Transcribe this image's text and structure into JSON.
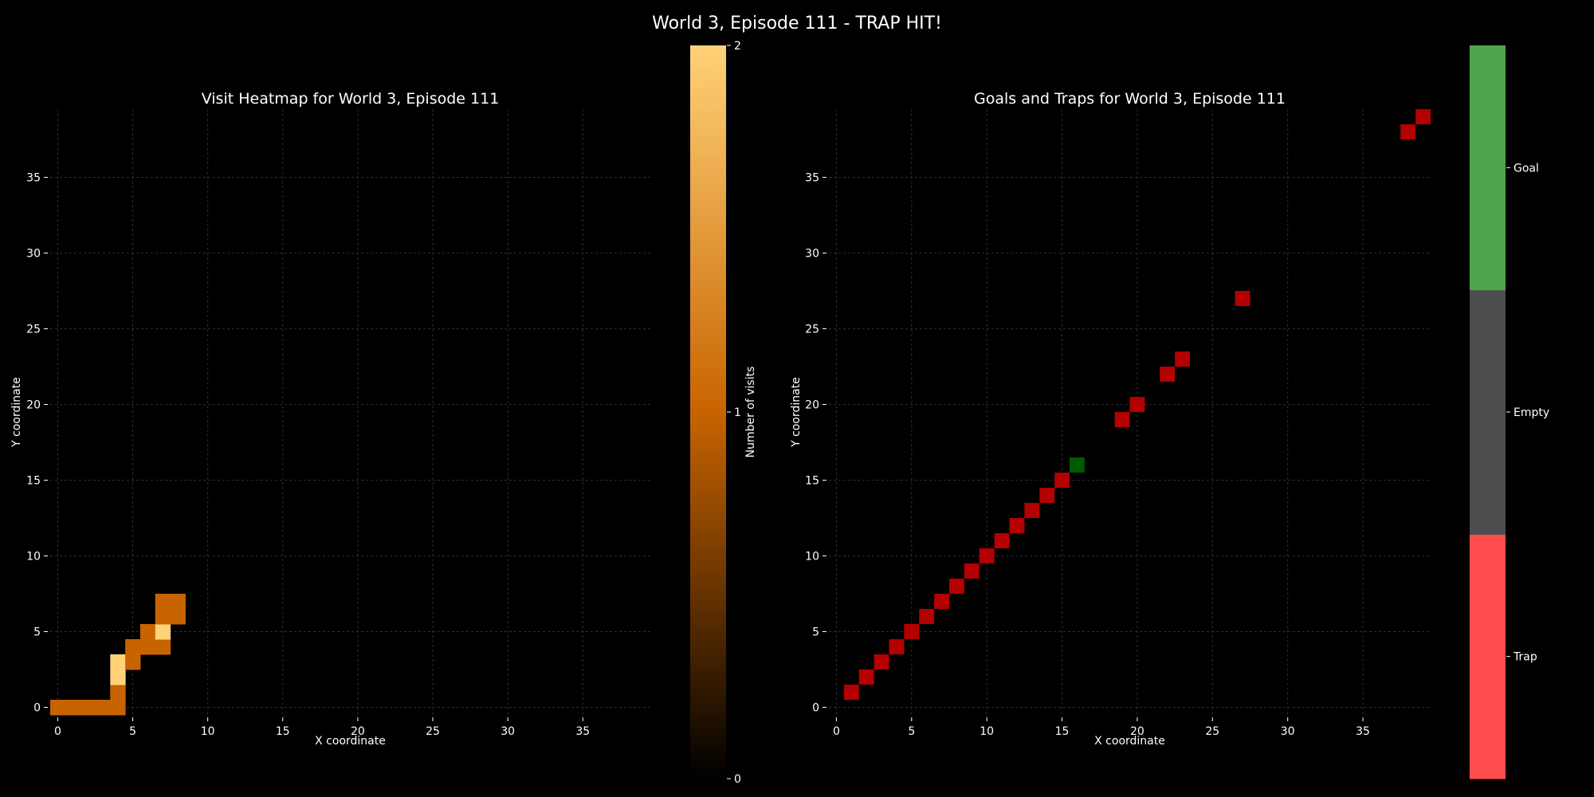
{
  "suptitle": "World 3, Episode 111 - TRAP HIT!",
  "chart_data": [
    {
      "type": "heatmap",
      "title": "Visit Heatmap for World 3, Episode 111",
      "xlabel": "X coordinate",
      "ylabel": "Y coordinate",
      "xlim": [
        -0.5,
        39.5
      ],
      "ylim": [
        -0.5,
        39.5
      ],
      "xticks": [
        0,
        5,
        10,
        15,
        20,
        25,
        30,
        35
      ],
      "yticks": [
        0,
        5,
        10,
        15,
        20,
        25,
        30,
        35
      ],
      "grid": true,
      "colorbar": {
        "label": "Number of visits",
        "range": [
          0,
          2
        ],
        "ticks": [
          0,
          1,
          2
        ],
        "colormap": "copper-to-light-orange",
        "colors": [
          "#000000",
          "#c86400",
          "#ffd278"
        ]
      },
      "cells": [
        {
          "x": 0,
          "y": 0,
          "v": 1
        },
        {
          "x": 1,
          "y": 0,
          "v": 1
        },
        {
          "x": 2,
          "y": 0,
          "v": 1
        },
        {
          "x": 3,
          "y": 0,
          "v": 1
        },
        {
          "x": 4,
          "y": 0,
          "v": 1
        },
        {
          "x": 4,
          "y": 1,
          "v": 1
        },
        {
          "x": 4,
          "y": 2,
          "v": 2
        },
        {
          "x": 4,
          "y": 3,
          "v": 2
        },
        {
          "x": 5,
          "y": 3,
          "v": 1
        },
        {
          "x": 5,
          "y": 4,
          "v": 1
        },
        {
          "x": 6,
          "y": 4,
          "v": 1
        },
        {
          "x": 7,
          "y": 4,
          "v": 1
        },
        {
          "x": 6,
          "y": 5,
          "v": 1
        },
        {
          "x": 7,
          "y": 5,
          "v": 2
        },
        {
          "x": 7,
          "y": 6,
          "v": 1
        },
        {
          "x": 8,
          "y": 6,
          "v": 1
        },
        {
          "x": 7,
          "y": 7,
          "v": 1
        },
        {
          "x": 8,
          "y": 7,
          "v": 1
        }
      ]
    },
    {
      "type": "heatmap",
      "title": "Goals and Traps for World 3, Episode 111",
      "xlabel": "X coordinate",
      "ylabel": "Y coordinate",
      "xlim": [
        -0.5,
        39.5
      ],
      "ylim": [
        -0.5,
        39.5
      ],
      "xticks": [
        0,
        5,
        10,
        15,
        20,
        25,
        30,
        35
      ],
      "yticks": [
        0,
        5,
        10,
        15,
        20,
        25,
        30,
        35
      ],
      "grid": true,
      "colors": {
        "trap": "#b40000",
        "goal": "#005a00"
      },
      "colorbar": {
        "categories": [
          "Trap",
          "Empty",
          "Goal"
        ],
        "colors": [
          "#ff4d4d",
          "#4d4d4d",
          "#4da64d"
        ]
      },
      "traps": [
        [
          1,
          1
        ],
        [
          2,
          2
        ],
        [
          3,
          3
        ],
        [
          4,
          4
        ],
        [
          5,
          5
        ],
        [
          6,
          6
        ],
        [
          7,
          7
        ],
        [
          8,
          8
        ],
        [
          9,
          9
        ],
        [
          10,
          10
        ],
        [
          11,
          11
        ],
        [
          12,
          12
        ],
        [
          13,
          13
        ],
        [
          14,
          14
        ],
        [
          15,
          15
        ],
        [
          19,
          19
        ],
        [
          20,
          20
        ],
        [
          22,
          22
        ],
        [
          23,
          23
        ],
        [
          27,
          27
        ],
        [
          38,
          38
        ],
        [
          39,
          39
        ]
      ],
      "goals": [
        [
          16,
          16
        ]
      ]
    }
  ]
}
